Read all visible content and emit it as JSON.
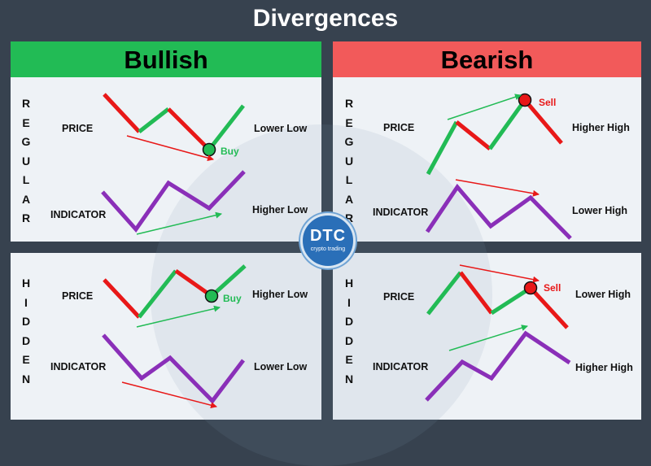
{
  "title": "Divergences",
  "columns": {
    "bullish": {
      "label": "Bullish",
      "color": "#22bb55"
    },
    "bearish": {
      "label": "Bearish",
      "color": "#f25a5a"
    }
  },
  "rows": {
    "regular": {
      "letters": [
        "R",
        "E",
        "G",
        "U",
        "L",
        "A",
        "R"
      ]
    },
    "hidden": {
      "letters": [
        "H",
        "I",
        "D",
        "D",
        "E",
        "N"
      ]
    }
  },
  "panels": {
    "bullish_regular": {
      "price_label": "PRICE",
      "indicator_label": "INDICATOR",
      "price_note": "Lower Low",
      "indicator_note": "Higher Low",
      "signal": "Buy"
    },
    "bearish_regular": {
      "price_label": "PRICE",
      "indicator_label": "INDICATOR",
      "price_note": "Higher High",
      "indicator_note": "Lower High",
      "signal": "Sell"
    },
    "bullish_hidden": {
      "price_label": "PRICE",
      "indicator_label": "INDICATOR",
      "price_note": "Higher Low",
      "indicator_note": "Lower Low",
      "signal": "Buy"
    },
    "bearish_hidden": {
      "price_label": "PRICE",
      "indicator_label": "INDICATOR",
      "price_note": "Lower High",
      "indicator_note": "Higher High",
      "signal": "Sell"
    }
  },
  "colors": {
    "price_up": "#22bb55",
    "price_down": "#e81818",
    "indicator": "#8a2fb8",
    "buy": "#22bb55",
    "sell": "#e81818"
  },
  "logo": {
    "name": "DTC",
    "tagline": "crypto trading"
  }
}
